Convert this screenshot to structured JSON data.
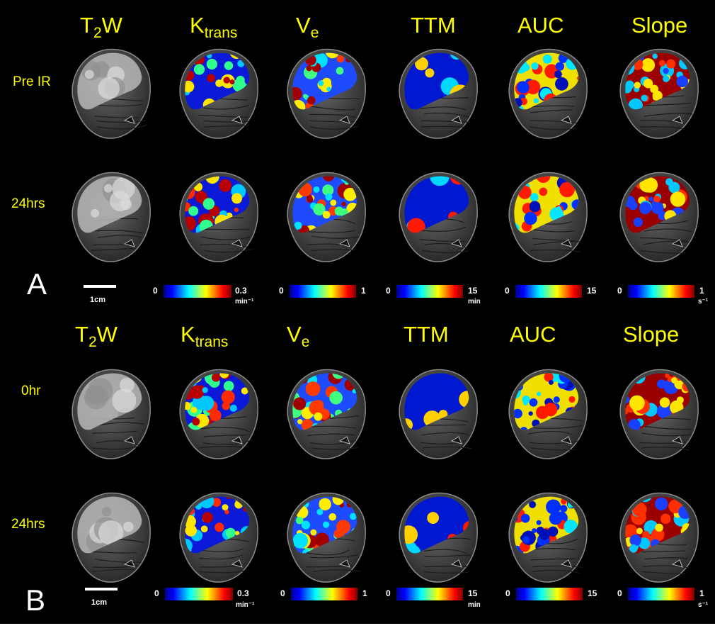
{
  "figure": {
    "panels": [
      {
        "letter": "A",
        "row_labels": [
          "Pre IR",
          "24hrs"
        ],
        "scale_bar_label": "1cm"
      },
      {
        "letter": "B",
        "row_labels": [
          "0hr",
          "24hrs"
        ],
        "scale_bar_label": "1cm"
      }
    ],
    "columns": [
      {
        "main": "T",
        "sub": "2",
        "tail": "W"
      },
      {
        "main": "K",
        "sub": "trans",
        "tail": ""
      },
      {
        "main": "V",
        "sub": "e",
        "tail": ""
      },
      {
        "main": "TTM",
        "sub": "",
        "tail": ""
      },
      {
        "main": "AUC",
        "sub": "",
        "tail": ""
      },
      {
        "main": "Slope",
        "sub": "",
        "tail": ""
      }
    ],
    "colorbars": [
      {
        "min": "0",
        "max": "0.3",
        "unit": "min⁻¹"
      },
      {
        "min": "0",
        "max": "1",
        "unit": ""
      },
      {
        "min": "0",
        "max": "15",
        "unit": "min"
      },
      {
        "min": "0",
        "max": "15",
        "unit": ""
      },
      {
        "min": "0",
        "max": "1",
        "unit": "s⁻¹"
      }
    ],
    "colors": {
      "label": "#ffff00",
      "background": "#000000",
      "jet": [
        "#00008f",
        "#0000ff",
        "#0080ff",
        "#00ffff",
        "#80ff80",
        "#ffff00",
        "#ff8000",
        "#ff0000",
        "#800000"
      ]
    },
    "icons": {
      "mri-slice": "mri-slice-icon",
      "parametric-map": "parametric-map-icon"
    }
  }
}
